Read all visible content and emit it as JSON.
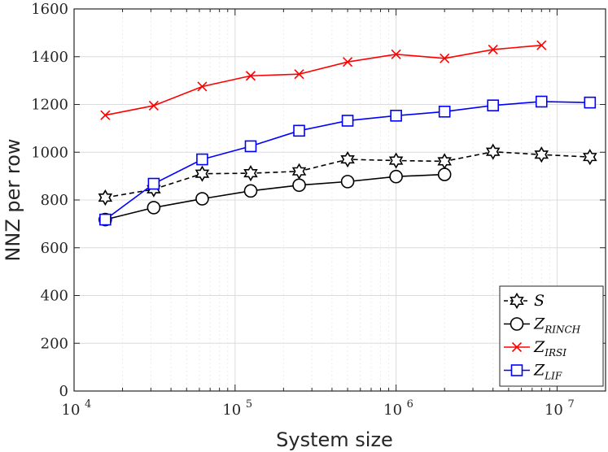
{
  "chart_data": {
    "type": "line",
    "xscale": "log",
    "xlabel": "System size",
    "ylabel": "NNZ per row",
    "xlim": [
      10000,
      20000000
    ],
    "ylim": [
      0,
      1600
    ],
    "grid": true,
    "legend_position": "bottom-right",
    "x_ticks": [
      {
        "base": "10",
        "exp": "4"
      },
      {
        "base": "10",
        "exp": "5"
      },
      {
        "base": "10",
        "exp": "6"
      },
      {
        "base": "10",
        "exp": "7"
      }
    ],
    "y_ticks": [
      "0",
      "200",
      "400",
      "600",
      "800",
      "1000",
      "1200",
      "1400",
      "1600"
    ],
    "series": [
      {
        "name": "S",
        "name_main": "S",
        "name_sub": "",
        "color": "#000000",
        "dash": "dashed",
        "marker": "hexagram",
        "x": [
          15625,
          31250,
          62500,
          125000,
          250000,
          500000,
          1000000,
          2000000,
          4000000,
          8000000,
          16000000
        ],
        "y": [
          810,
          845,
          910,
          912,
          920,
          970,
          965,
          962,
          1002,
          990,
          980
        ]
      },
      {
        "name": "Z_RINCH",
        "name_main": "Z",
        "name_sub": "RINCH",
        "color": "#000000",
        "dash": "solid",
        "marker": "circle",
        "x": [
          15625,
          31250,
          62500,
          125000,
          250000,
          500000,
          1000000,
          2000000
        ],
        "y": [
          718,
          768,
          805,
          838,
          862,
          877,
          898,
          907
        ]
      },
      {
        "name": "Z_IRSI",
        "name_main": "Z",
        "name_sub": "IRSI",
        "color": "#ff0000",
        "dash": "solid",
        "marker": "x",
        "x": [
          15625,
          31250,
          62500,
          125000,
          250000,
          500000,
          1000000,
          2000000,
          4000000,
          8000000
        ],
        "y": [
          1155,
          1195,
          1275,
          1320,
          1327,
          1378,
          1410,
          1393,
          1430,
          1448
        ]
      },
      {
        "name": "Z_LIF",
        "name_main": "Z",
        "name_sub": "LIF",
        "color": "#0000ff",
        "dash": "solid",
        "marker": "square",
        "x": [
          15625,
          31250,
          62500,
          125000,
          250000,
          500000,
          1000000,
          2000000,
          4000000,
          8000000,
          16000000
        ],
        "y": [
          718,
          868,
          970,
          1025,
          1090,
          1132,
          1153,
          1170,
          1196,
          1212,
          1208
        ]
      }
    ]
  }
}
